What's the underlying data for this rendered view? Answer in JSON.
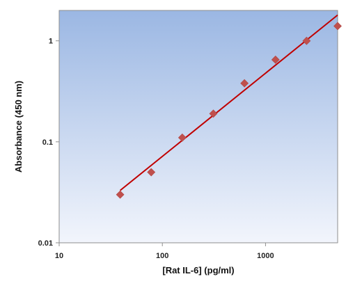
{
  "chart_data": {
    "type": "scatter",
    "title": "",
    "xlabel": "[Rat IL-6] (pg/ml)",
    "ylabel": "Absorbance (450 nm)",
    "x_scale": "log",
    "y_scale": "log",
    "xlim": [
      10,
      5000
    ],
    "ylim": [
      0.01,
      2
    ],
    "x_ticks": [
      10,
      100,
      1000
    ],
    "x_tick_labels": [
      "10",
      "100",
      "1000"
    ],
    "y_ticks": [
      0.01,
      0.1,
      1
    ],
    "y_tick_labels": [
      "0.01",
      "0.1",
      "1"
    ],
    "grid": false,
    "legend": "none",
    "series": [
      {
        "marker": "diamond",
        "color": "#c0504d",
        "x": [
          39,
          78,
          156,
          312,
          625,
          1250,
          2500,
          5000
        ],
        "y": [
          0.03,
          0.05,
          0.11,
          0.19,
          0.38,
          0.65,
          1.0,
          1.4
        ]
      }
    ],
    "fit_line": {
      "color": "#c00000",
      "x": [
        39,
        5000
      ],
      "y": [
        0.033,
        1.8
      ]
    },
    "plot_background": {
      "top": "#9bb7e3",
      "bottom": "#f2f5fc"
    }
  }
}
